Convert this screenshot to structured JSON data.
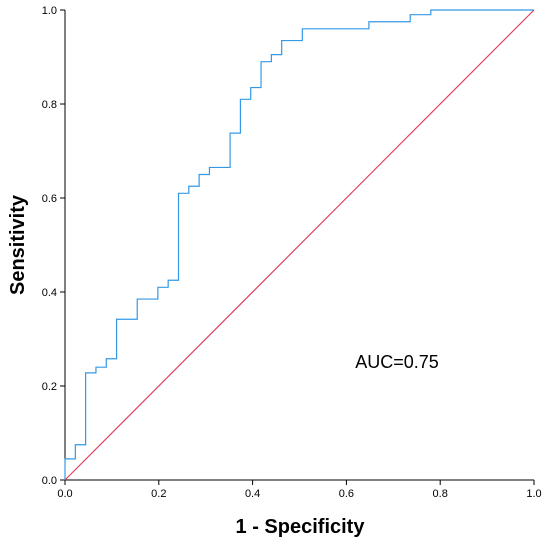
{
  "chart_data": {
    "type": "line",
    "title": "",
    "xlabel": "1 - Specificity",
    "ylabel": "Sensitivity",
    "xlim": [
      0,
      1
    ],
    "ylim": [
      0,
      1
    ],
    "x_ticks": [
      "0.0",
      "0.2",
      "0.4",
      "0.6",
      "0.8",
      "1.0"
    ],
    "y_ticks": [
      "0.0",
      "0.2",
      "0.4",
      "0.6",
      "0.8",
      "1.0"
    ],
    "grid": false,
    "annotation": "AUC=0.75",
    "series": [
      {
        "color": "#3399e6",
        "step": true,
        "points": [
          [
            0.0,
            0.0
          ],
          [
            0.0,
            0.045
          ],
          [
            0.022,
            0.045
          ],
          [
            0.022,
            0.075
          ],
          [
            0.044,
            0.075
          ],
          [
            0.044,
            0.228
          ],
          [
            0.066,
            0.228
          ],
          [
            0.066,
            0.24
          ],
          [
            0.088,
            0.24
          ],
          [
            0.088,
            0.258
          ],
          [
            0.11,
            0.258
          ],
          [
            0.11,
            0.342
          ],
          [
            0.154,
            0.342
          ],
          [
            0.154,
            0.385
          ],
          [
            0.198,
            0.385
          ],
          [
            0.198,
            0.41
          ],
          [
            0.22,
            0.41
          ],
          [
            0.22,
            0.425
          ],
          [
            0.242,
            0.425
          ],
          [
            0.242,
            0.61
          ],
          [
            0.264,
            0.61
          ],
          [
            0.264,
            0.625
          ],
          [
            0.286,
            0.625
          ],
          [
            0.286,
            0.65
          ],
          [
            0.308,
            0.65
          ],
          [
            0.308,
            0.665
          ],
          [
            0.352,
            0.665
          ],
          [
            0.352,
            0.738
          ],
          [
            0.374,
            0.738
          ],
          [
            0.374,
            0.81
          ],
          [
            0.396,
            0.81
          ],
          [
            0.396,
            0.835
          ],
          [
            0.418,
            0.835
          ],
          [
            0.418,
            0.89
          ],
          [
            0.44,
            0.89
          ],
          [
            0.44,
            0.905
          ],
          [
            0.462,
            0.905
          ],
          [
            0.462,
            0.935
          ],
          [
            0.506,
            0.935
          ],
          [
            0.506,
            0.96
          ],
          [
            0.648,
            0.96
          ],
          [
            0.648,
            0.975
          ],
          [
            0.736,
            0.975
          ],
          [
            0.736,
            0.99
          ],
          [
            0.78,
            0.99
          ],
          [
            0.78,
            1.0
          ],
          [
            1.0,
            1.0
          ]
        ]
      },
      {
        "color": "#e0405e",
        "step": false,
        "points": [
          [
            0,
            0
          ],
          [
            1,
            1
          ]
        ]
      }
    ]
  }
}
